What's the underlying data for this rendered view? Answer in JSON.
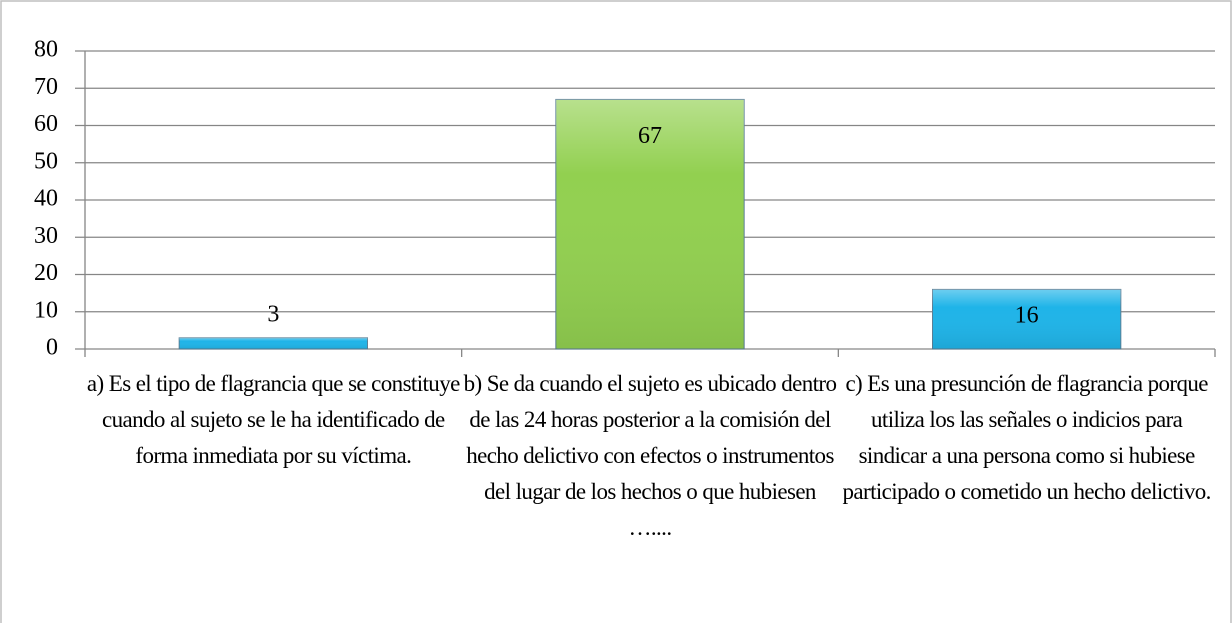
{
  "chart_data": {
    "type": "bar",
    "categories": [
      "a) Es el tipo de flagrancia que se constituye cuando al sujeto se le ha identificado de forma inmediata por su víctima.",
      "b) Se da cuando el sujeto es ubicado dentro de las 24 horas posterior a la comisión del hecho delictivo con efectos o instrumentos del lugar de los hechos o que hubiesen …....",
      "c) Es una presunción de flagrancia porque utiliza los las señales o indicios para sindicar a una persona como si hubiese participado o cometido un hecho delictivo."
    ],
    "values": [
      3,
      67,
      16
    ],
    "colors": [
      "#1fb4e8",
      "#92d050",
      "#1fb4e8"
    ],
    "ylim": [
      0,
      80
    ],
    "yticks": [
      0,
      10,
      20,
      30,
      40,
      50,
      60,
      70,
      80
    ],
    "grid": true
  }
}
